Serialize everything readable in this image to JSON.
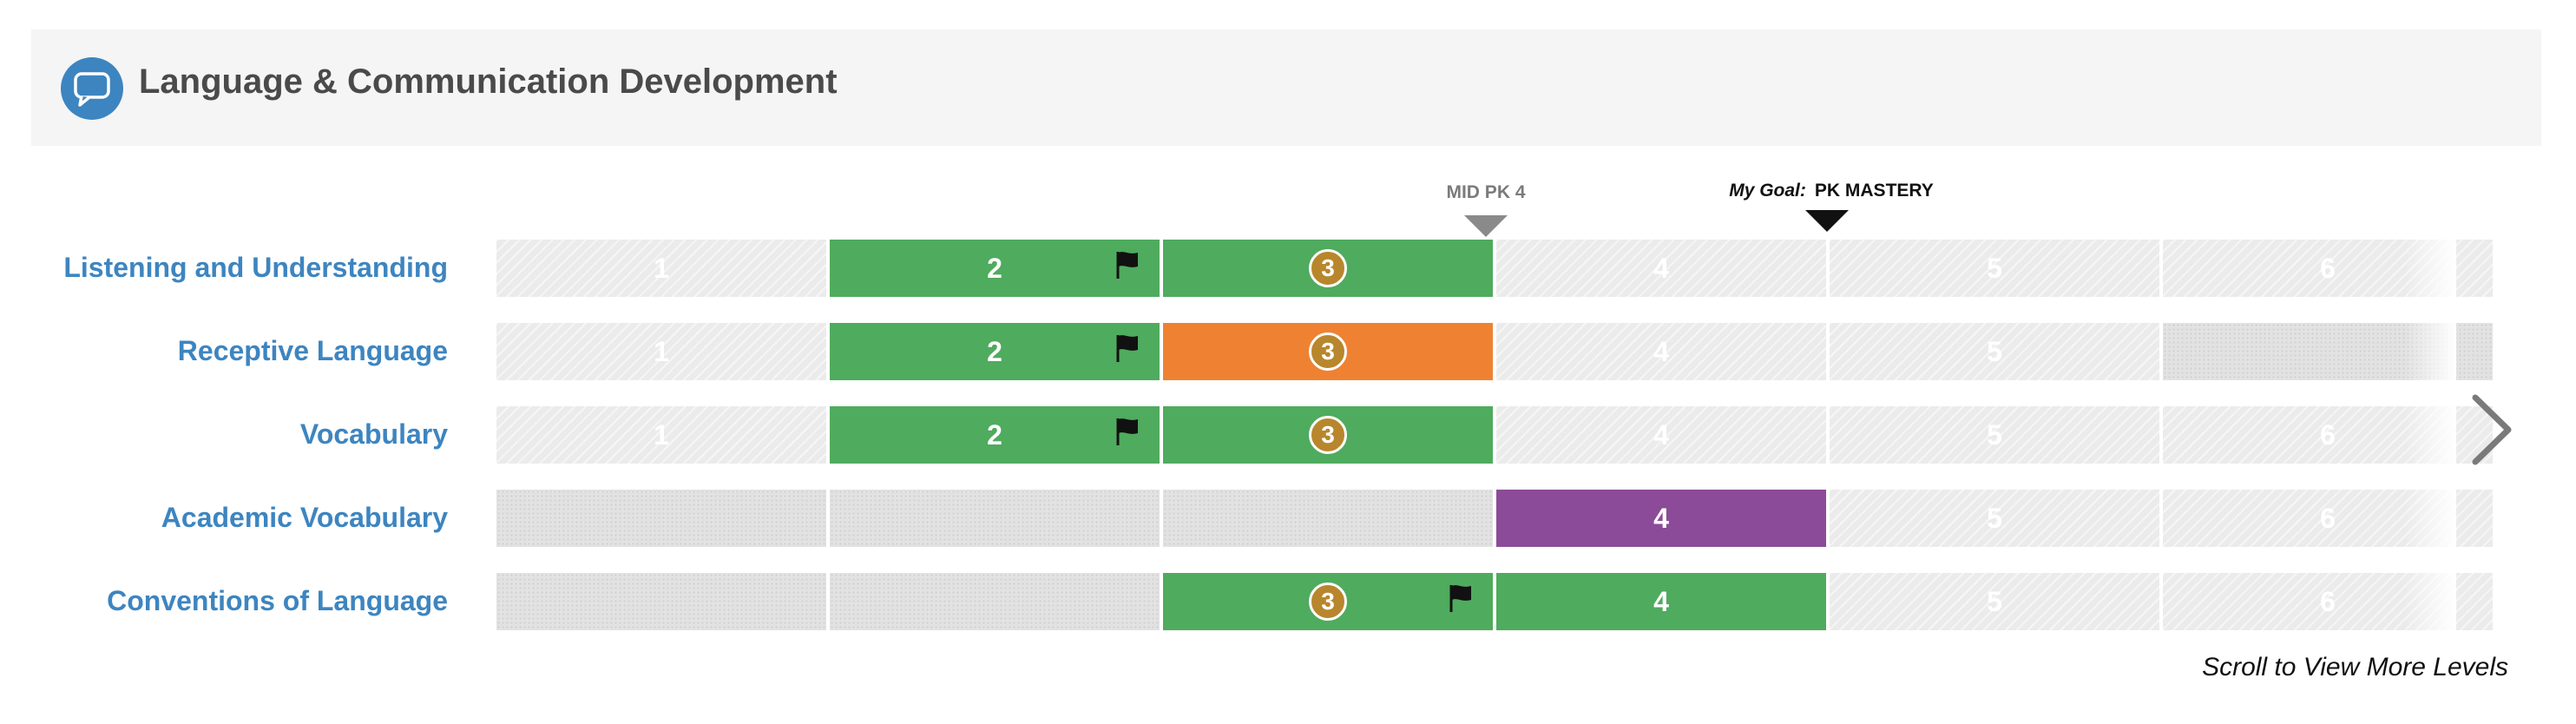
{
  "header": {
    "title": "Language & Communication Development",
    "icon": "speech-bubble-icon",
    "icon_color": "#3d85c0"
  },
  "markers": {
    "mid": {
      "label": "MID PK 4",
      "level": 4,
      "color": "#8a8a8a"
    },
    "goal": {
      "prefix": "My Goal:",
      "label": "PK MASTERY",
      "level": 5,
      "color": "#111111"
    }
  },
  "colors": {
    "achieved": "#4fab5e",
    "in_progress": "#ef8232",
    "purple": "#8c4b98",
    "badge": "#b8862c",
    "label": "#3d85c0"
  },
  "rows": [
    {
      "label": "Listening and Understanding",
      "cells": [
        {
          "type": "empty",
          "text": "1"
        },
        {
          "type": "green",
          "text": "2",
          "flag": true
        },
        {
          "type": "green",
          "text": "3",
          "badge": true
        },
        {
          "type": "empty",
          "text": "4"
        },
        {
          "type": "empty",
          "text": "5"
        },
        {
          "type": "empty",
          "text": "6"
        }
      ]
    },
    {
      "label": "Receptive Language",
      "cells": [
        {
          "type": "empty",
          "text": "1"
        },
        {
          "type": "green",
          "text": "2",
          "flag": true
        },
        {
          "type": "orange",
          "text": "3",
          "badge": true
        },
        {
          "type": "empty",
          "text": "4"
        },
        {
          "type": "empty",
          "text": "5"
        },
        {
          "type": "na",
          "text": ""
        }
      ]
    },
    {
      "label": "Vocabulary",
      "cells": [
        {
          "type": "empty",
          "text": "1"
        },
        {
          "type": "green",
          "text": "2",
          "flag": true
        },
        {
          "type": "green",
          "text": "3",
          "badge": true
        },
        {
          "type": "empty",
          "text": "4"
        },
        {
          "type": "empty",
          "text": "5"
        },
        {
          "type": "empty",
          "text": "6"
        }
      ]
    },
    {
      "label": "Academic Vocabulary",
      "cells": [
        {
          "type": "na",
          "text": ""
        },
        {
          "type": "na",
          "text": ""
        },
        {
          "type": "na",
          "text": ""
        },
        {
          "type": "purple",
          "text": "4"
        },
        {
          "type": "empty",
          "text": "5"
        },
        {
          "type": "empty",
          "text": "6"
        }
      ]
    },
    {
      "label": "Conventions of Language",
      "cells": [
        {
          "type": "na",
          "text": ""
        },
        {
          "type": "na",
          "text": ""
        },
        {
          "type": "green",
          "text": "3",
          "badge": true,
          "flag": true
        },
        {
          "type": "green",
          "text": "4"
        },
        {
          "type": "empty",
          "text": "5"
        },
        {
          "type": "empty",
          "text": "6"
        }
      ]
    }
  ],
  "scroll_hint": "Scroll to View More Levels",
  "next_icon": "chevron-right-icon"
}
